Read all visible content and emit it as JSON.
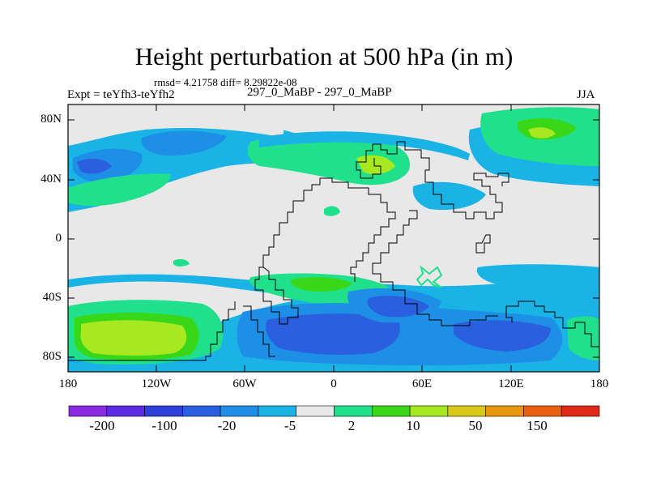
{
  "title": "Height perturbation at 500 hPa (in m)",
  "stats_line": "rmsd= 4.21758 diff= 8.29822e-08",
  "experiment": "Expt = teYfh3-teYfh2",
  "center_label": "297_0_MaBP - 297_0_MaBP",
  "season": "JJA",
  "map": {
    "lat_ticks": [
      "80N",
      "40N",
      "0",
      "40S",
      "80S"
    ],
    "lon_ticks": [
      "180",
      "120W",
      "60W",
      "0",
      "60E",
      "120E",
      "180"
    ]
  },
  "colorbar": {
    "colors": [
      "#8a2be2",
      "#5a2be0",
      "#2d3fd8",
      "#2a5fe0",
      "#1e8fe6",
      "#19b3e6",
      "#e8e8e8",
      "#20e08c",
      "#38d818",
      "#a8e820",
      "#d8c818",
      "#e89810",
      "#e86010",
      "#e02818"
    ],
    "labels": [
      "-200",
      "-100",
      "-20",
      "-5",
      "2",
      "10",
      "50",
      "150"
    ]
  },
  "colors": {
    "land_outline": "#000000",
    "background_zero": "#e8e8e8",
    "cyan": "#19b3e6",
    "blue": "#1e8fe6",
    "deep_blue": "#2a5fe0",
    "green": "#20e08c",
    "bright_green": "#38d818",
    "yellow_green": "#a8e820"
  }
}
